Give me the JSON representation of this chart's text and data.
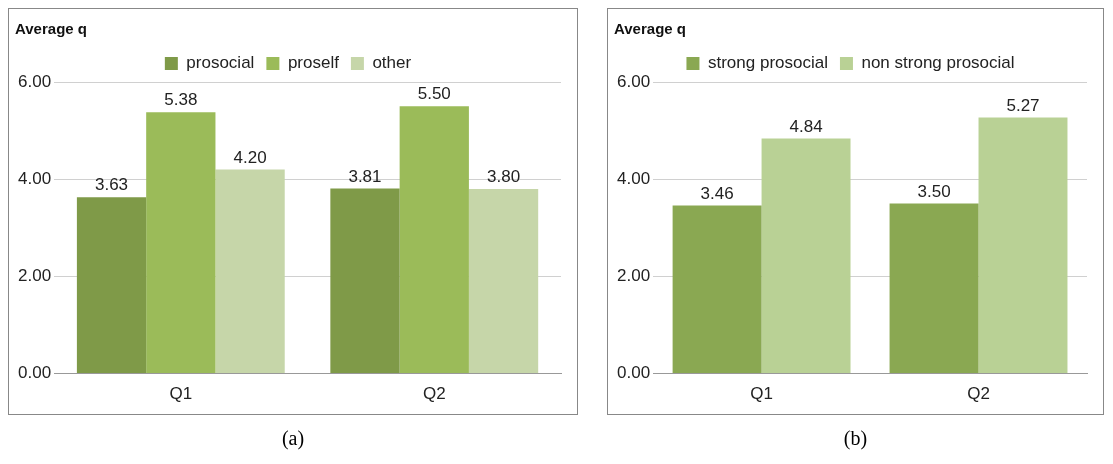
{
  "chart_data": [
    {
      "type": "bar",
      "title": "Average q",
      "categories": [
        "Q1",
        "Q2"
      ],
      "series": [
        {
          "name": "prosocial",
          "color": "#7f9a48",
          "values": [
            3.63,
            3.81
          ],
          "value_labels": [
            "3.63",
            "3.81"
          ]
        },
        {
          "name": "proself",
          "color": "#9bbb59",
          "values": [
            5.38,
            5.5
          ],
          "value_labels": [
            "5.38",
            "5.50"
          ]
        },
        {
          "name": "other",
          "color": "#c6d6a9",
          "values": [
            4.2,
            3.8
          ],
          "value_labels": [
            "4.20",
            "3.80"
          ]
        }
      ],
      "ylim": [
        0,
        6
      ],
      "yticks": [
        {
          "value": 0,
          "label": "0.00"
        },
        {
          "value": 2,
          "label": "2.00"
        },
        {
          "value": 4,
          "label": "4.00"
        },
        {
          "value": 6,
          "label": "6.00"
        }
      ],
      "grid": "y",
      "legend": "top",
      "annotations": [
        "(a)"
      ]
    },
    {
      "type": "bar",
      "title": "Average q",
      "categories": [
        "Q1",
        "Q2"
      ],
      "series": [
        {
          "name": "strong prosocial",
          "color": "#8aa852",
          "values": [
            3.46,
            3.5
          ],
          "value_labels": [
            "3.46",
            "3.50"
          ]
        },
        {
          "name": "non strong prosocial",
          "color": "#b9d195",
          "values": [
            4.84,
            5.27
          ],
          "value_labels": [
            "4.84",
            "5.27"
          ]
        }
      ],
      "ylim": [
        0,
        6
      ],
      "yticks": [
        {
          "value": 0,
          "label": "0.00"
        },
        {
          "value": 2,
          "label": "2.00"
        },
        {
          "value": 4,
          "label": "4.00"
        },
        {
          "value": 6,
          "label": "6.00"
        }
      ],
      "grid": "y",
      "legend": "top",
      "annotations": [
        "(b)"
      ]
    }
  ]
}
